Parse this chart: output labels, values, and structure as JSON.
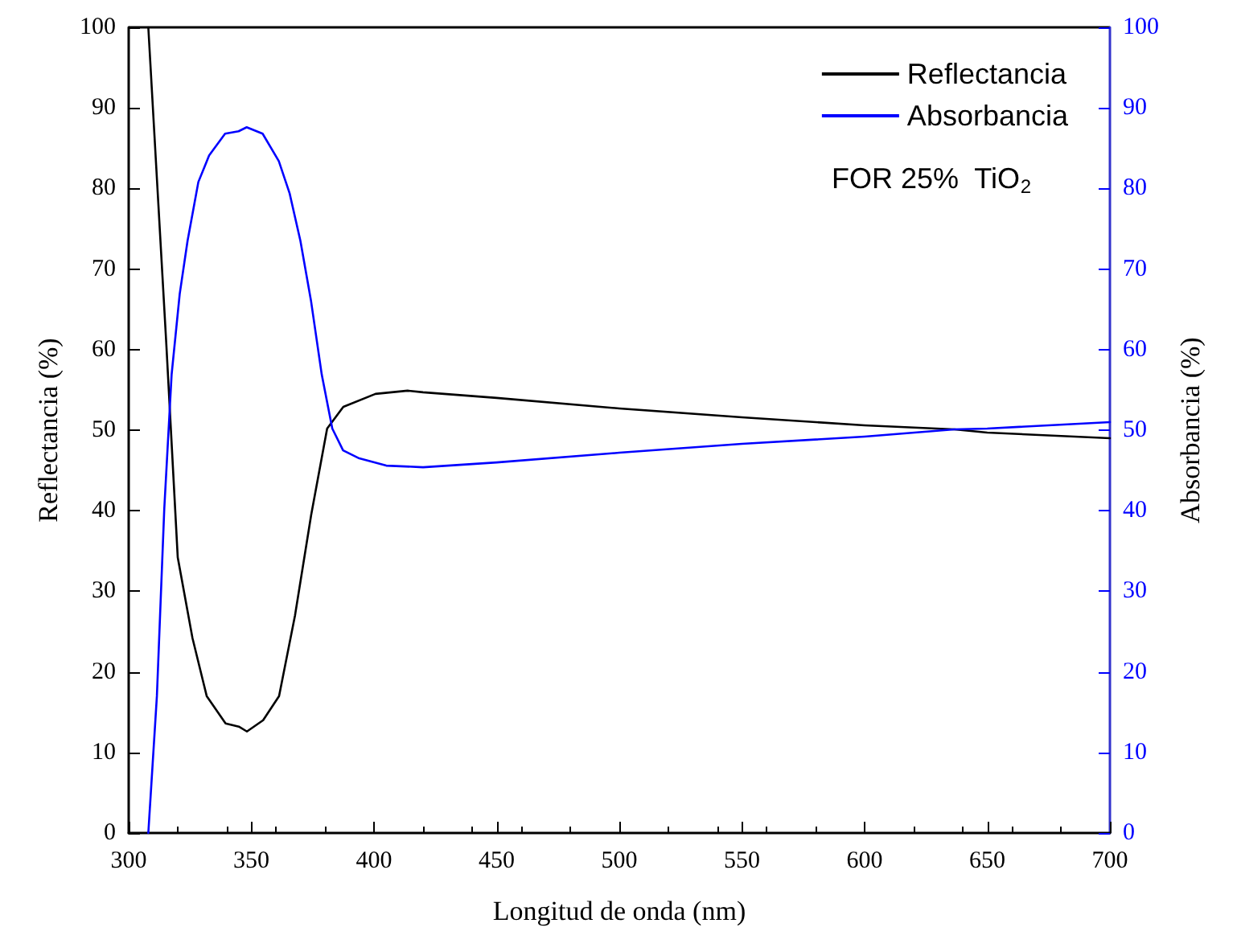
{
  "chart_data": {
    "type": "line",
    "xlabel": "Longitud de onda (nm)",
    "ylabel": "Reflectancia (%)",
    "y2label": "Absorbancia (%)",
    "annotations": [
      "FOR 25%  TiO$_{2}$"
    ],
    "xlim": [
      300,
      700
    ],
    "xticks": [
      300,
      350,
      400,
      450,
      500,
      550,
      600,
      650,
      700
    ],
    "ylim": [
      0,
      100
    ],
    "yticks": [
      0,
      10,
      20,
      30,
      40,
      50,
      60,
      70,
      80,
      90,
      100
    ],
    "y2lim": [
      0,
      100
    ],
    "y2ticks": [
      0,
      10,
      20,
      30,
      40,
      50,
      60,
      70,
      80,
      90,
      100
    ],
    "grid": false,
    "legend": "top right",
    "marker": "none",
    "line_style": "solid",
    "series": [
      {
        "name": "Reflectancia",
        "color": "#000000",
        "x": [
          308,
          315.3,
          320,
          326,
          331.8,
          339.5,
          344.9,
          348.2,
          354.8,
          361.3,
          367.8,
          374.4,
          380.9,
          387.5,
          400.6,
          413.7,
          420,
          450,
          500,
          550,
          600,
          636.6,
          650,
          700
        ],
        "values": [
          100,
          60.9,
          34.2,
          24.2,
          17,
          13.6,
          13.2,
          12.6,
          14,
          17,
          27,
          39.5,
          50.2,
          52.9,
          54.5,
          54.9,
          54.7,
          54,
          52.7,
          51.6,
          50.6,
          50.1,
          49.7,
          49
        ]
      },
      {
        "name": "Absorbancia",
        "color": "#0000ff",
        "axis": "y2",
        "x": [
          308,
          311.5,
          314.5,
          317.5,
          320.8,
          324,
          328.4,
          332.8,
          339.3,
          344.8,
          348.1,
          354.6,
          361.2,
          365.6,
          370,
          374.3,
          378.7,
          383,
          387.4,
          394,
          405,
          420,
          450,
          500,
          550,
          600,
          636.6,
          650,
          700
        ],
        "values": [
          0,
          17,
          40.2,
          56.9,
          66.9,
          73.5,
          80.8,
          84.1,
          86.8,
          87.1,
          87.6,
          86.8,
          83.4,
          79.4,
          73.5,
          66.1,
          56.9,
          50.2,
          47.5,
          46.5,
          45.6,
          45.4,
          46,
          47.2,
          48.3,
          49.2,
          50.1,
          50.2,
          51
        ]
      }
    ]
  }
}
